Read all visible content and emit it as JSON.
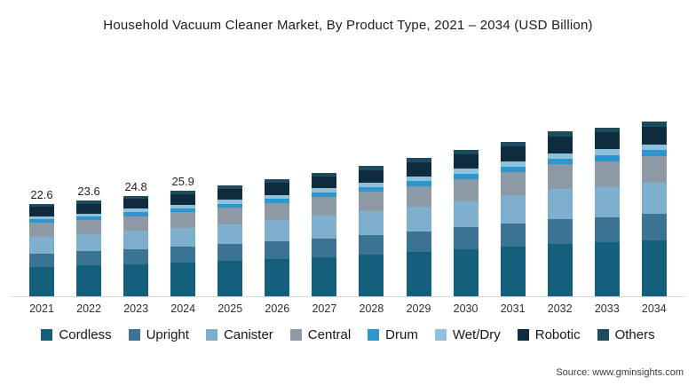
{
  "title": "Household Vacuum Cleaner Market, By Product Type, 2021 – 2034 (USD Billion)",
  "source": "Source: www.gminsights.com",
  "chart_data": {
    "type": "bar",
    "stacked": true,
    "grid": false,
    "legend_position": "bottom",
    "ylim": [
      0,
      47
    ],
    "categories": [
      "2021",
      "2022",
      "2023",
      "2024",
      "2025",
      "2026",
      "2027",
      "2028",
      "2029",
      "2030",
      "2031",
      "2032",
      "2033",
      "2034"
    ],
    "totals": [
      22.6,
      23.6,
      24.8,
      25.9,
      27.2,
      28.7,
      30.4,
      32.2,
      34.0,
      36.1,
      38.3,
      40.5,
      41.5,
      43.0
    ],
    "value_labels": [
      "22.6",
      "23.6",
      "24.8",
      "25.9",
      "",
      "",
      "",
      "",
      "",
      "",
      "",
      "",
      "",
      ""
    ],
    "series": [
      {
        "name": "Cordless",
        "color": "#14607c",
        "values": [
          7.2,
          7.6,
          7.9,
          8.3,
          8.7,
          9.2,
          9.7,
          10.3,
          10.9,
          11.6,
          12.3,
          13.0,
          13.3,
          13.8
        ]
      },
      {
        "name": "Upright",
        "color": "#3a7394",
        "values": [
          3.4,
          3.5,
          3.7,
          3.9,
          4.1,
          4.3,
          4.6,
          4.8,
          5.1,
          5.4,
          5.7,
          6.1,
          6.2,
          6.5
        ]
      },
      {
        "name": "Canister",
        "color": "#7eb0cd",
        "values": [
          4.1,
          4.2,
          4.5,
          4.7,
          4.9,
          5.2,
          5.5,
          5.8,
          6.1,
          6.5,
          6.9,
          7.3,
          7.5,
          7.7
        ]
      },
      {
        "name": "Central",
        "color": "#8d9aa5",
        "values": [
          3.4,
          3.5,
          3.7,
          3.9,
          4.1,
          4.3,
          4.6,
          4.8,
          5.1,
          5.4,
          5.7,
          6.1,
          6.2,
          6.5
        ]
      },
      {
        "name": "Drum",
        "color": "#2e96cf",
        "values": [
          0.8,
          0.8,
          0.9,
          0.9,
          1.0,
          1.0,
          1.1,
          1.1,
          1.2,
          1.3,
          1.3,
          1.4,
          1.5,
          1.5
        ]
      },
      {
        "name": "Wet/Dry",
        "color": "#8fc0dc",
        "values": [
          0.8,
          0.8,
          0.9,
          0.9,
          1.0,
          1.0,
          1.1,
          1.1,
          1.2,
          1.3,
          1.3,
          1.4,
          1.5,
          1.5
        ]
      },
      {
        "name": "Robotic",
        "color": "#0e2c3e",
        "values": [
          2.3,
          2.4,
          2.5,
          2.6,
          2.7,
          2.9,
          3.0,
          3.2,
          3.4,
          3.6,
          3.8,
          4.1,
          4.2,
          4.3
        ]
      },
      {
        "name": "Others",
        "color": "#1d4c5f",
        "values": [
          0.7,
          0.7,
          0.7,
          0.8,
          0.8,
          0.9,
          0.9,
          1.0,
          1.0,
          1.1,
          1.1,
          1.2,
          1.2,
          1.3
        ]
      }
    ]
  }
}
